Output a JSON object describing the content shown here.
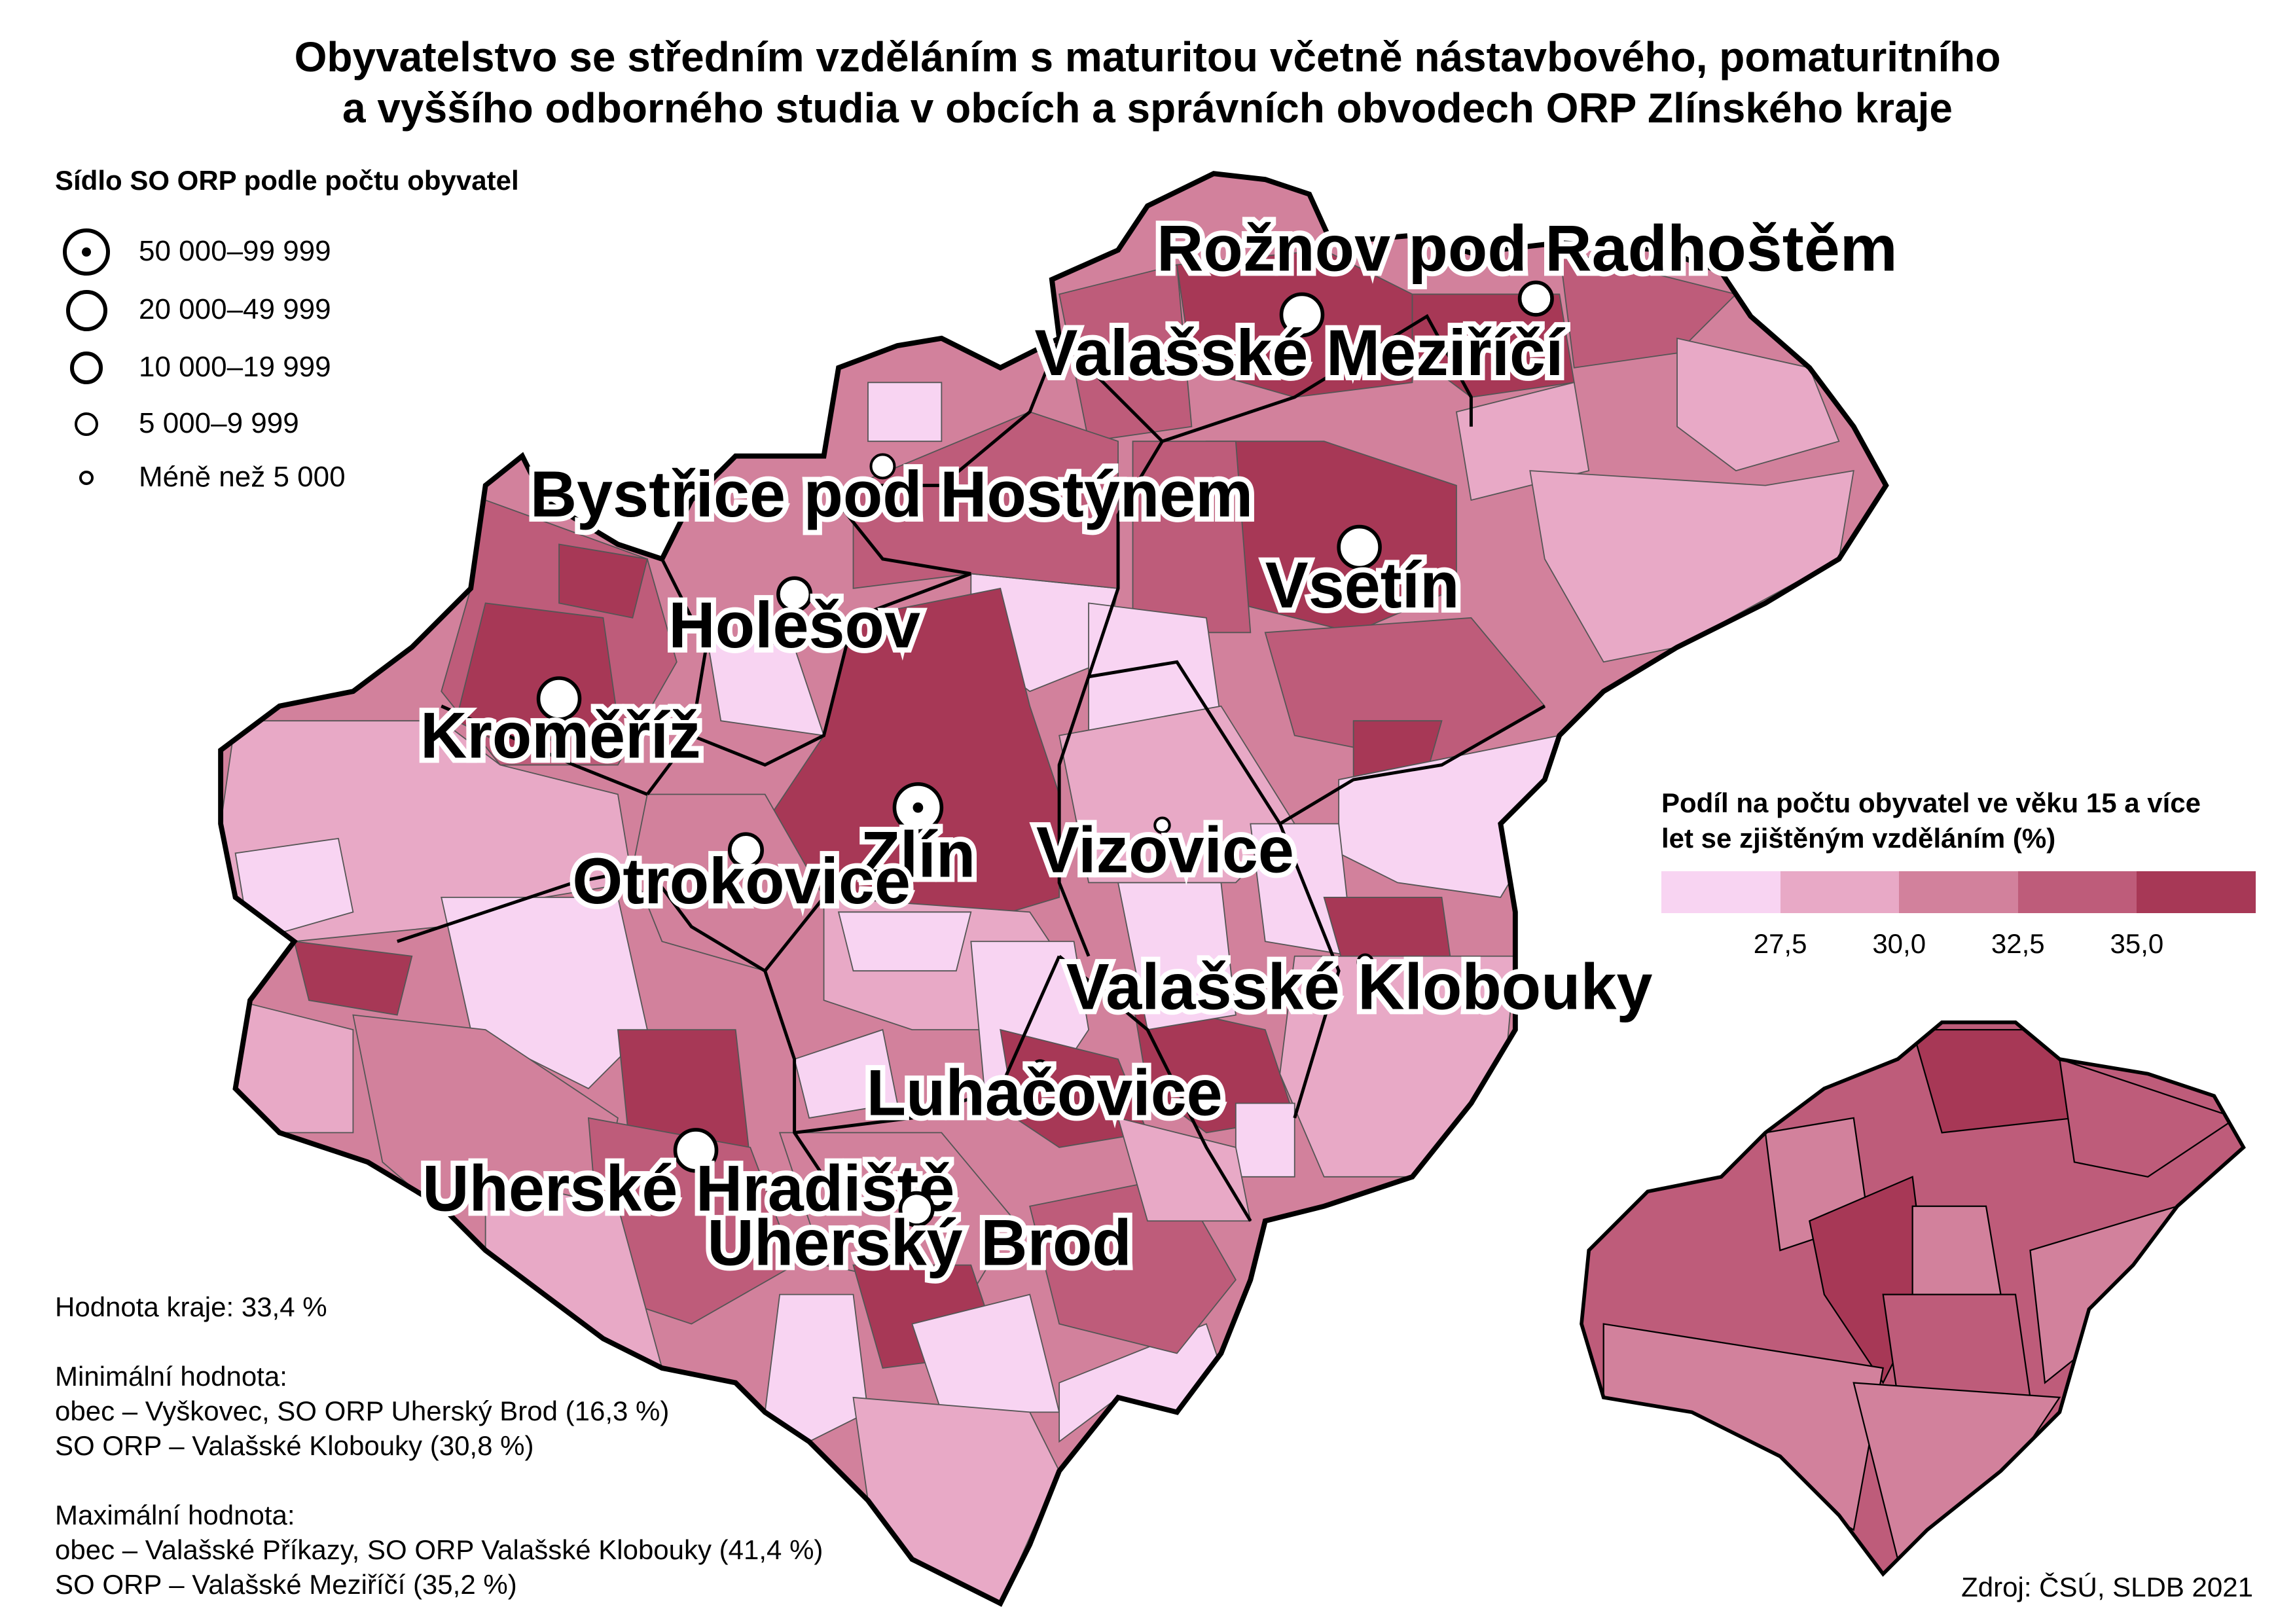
{
  "title": {
    "line1": "Obyvatelstvo se středním vzděláním s maturitou včetně nástavbového, pomaturitního",
    "line2": "a vyššího odborného studia v obcích a správních obvodech ORP Zlínského kraje"
  },
  "size_legend": {
    "title": "Sídlo SO ORP podle počtu obyvatel",
    "items": [
      "50 000–99 999",
      "20 000–49 999",
      "10 000–19 999",
      "5 000–9 999",
      "Méně než 5 000"
    ]
  },
  "color_legend": {
    "title_line1": "Podíl na počtu obyvatel ve věku 15 a více",
    "title_line2": "let se zjištěným vzděláním (%)",
    "colors": [
      "#f8d4f2",
      "#e8a9c6",
      "#d2819c",
      "#be5c7a",
      "#a73856"
    ],
    "breaks": [
      "27,5",
      "30,0",
      "32,5",
      "35,0"
    ]
  },
  "towns": [
    {
      "name": "Zlín",
      "size_class": "50 000–99 999"
    },
    {
      "name": "Kroměříž",
      "size_class": "20 000–49 999"
    },
    {
      "name": "Vsetín",
      "size_class": "20 000–49 999"
    },
    {
      "name": "Uherské Hradiště",
      "size_class": "20 000–49 999"
    },
    {
      "name": "Valašské Meziříčí",
      "size_class": "20 000–49 999"
    },
    {
      "name": "Otrokovice",
      "size_class": "10 000–19 999"
    },
    {
      "name": "Rožnov pod Radhoštěm",
      "size_class": "10 000–19 999"
    },
    {
      "name": "Uherský Brod",
      "size_class": "10 000–19 999"
    },
    {
      "name": "Holešov",
      "size_class": "10 000–19 999"
    },
    {
      "name": "Bystřice pod Hostýnem",
      "size_class": "5 000–9 999"
    },
    {
      "name": "Vizovice",
      "size_class": "Méně než 5 000"
    },
    {
      "name": "Valašské Klobouky",
      "size_class": "Méně než 5 000"
    },
    {
      "name": "Luhačovice",
      "size_class": "Méně než 5 000"
    }
  ],
  "stats": {
    "region_value": "Hodnota kraje: 33,4 %",
    "min_title": "Minimální hodnota:",
    "min_obec": "obec – Vyškovec, SO ORP Uherský Brod (16,3 %)",
    "min_orp": "SO ORP – Valašské Klobouky (30,8 %)",
    "max_title": "Maximální hodnota:",
    "max_obec": "obec – Valašské Příkazy, SO ORP Valašské Klobouky (41,4 %)",
    "max_orp": "SO ORP – Valašské Meziříčí (35,2 %)"
  },
  "source": "Zdroj: ČSÚ, SLDB 2021"
}
